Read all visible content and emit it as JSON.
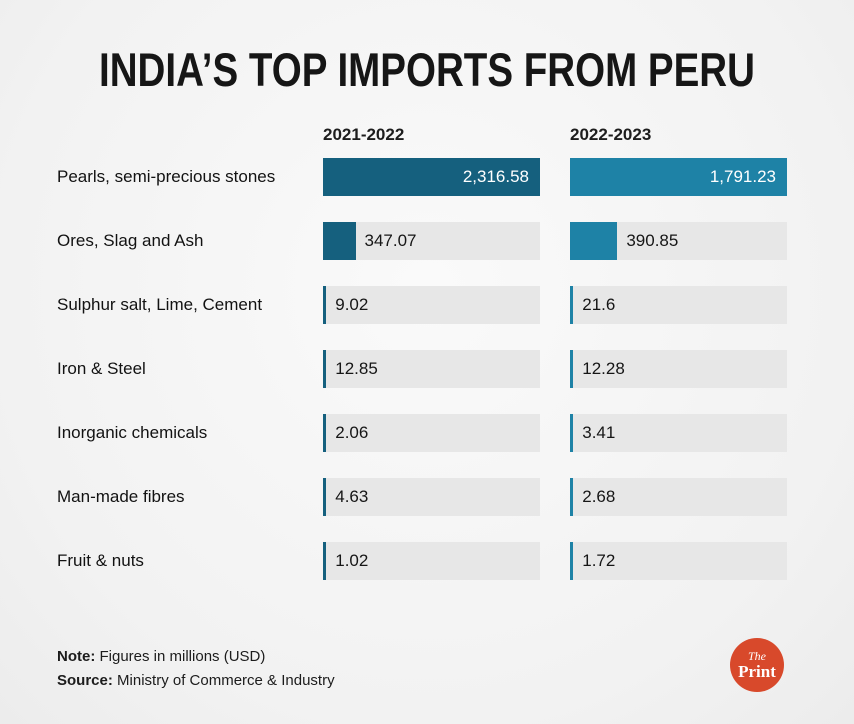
{
  "title": "INDIA’S TOP IMPORTS FROM PERU",
  "chart_data": {
    "type": "bar",
    "orientation": "horizontal",
    "title": "INDIA’S TOP IMPORTS FROM PERU",
    "categories": [
      "Pearls, semi-precious stones",
      "Ores, Slag and Ash",
      "Sulphur salt, Lime, Cement",
      "Iron & Steel",
      "Inorganic chemicals",
      "Man-made fibres",
      "Fruit & nuts"
    ],
    "series": [
      {
        "name": "2021-2022",
        "color": "#15607e",
        "values": [
          2316.58,
          347.07,
          9.02,
          12.85,
          2.06,
          4.63,
          1.02
        ],
        "labels": [
          "2,316.58",
          "347.07",
          "9.02",
          "12.85",
          "2.06",
          "4.63",
          "1.02"
        ]
      },
      {
        "name": "2022-2023",
        "color": "#1e82a6",
        "values": [
          1791.23,
          390.85,
          21.6,
          12.28,
          3.41,
          2.68,
          1.72
        ],
        "labels": [
          "1,791.23",
          "390.85",
          "21.6",
          "12.28",
          "3.41",
          "2.68",
          "1.72"
        ]
      }
    ],
    "legend_position": "top",
    "grid": false,
    "track_color": "#e7e7e7"
  },
  "footer": {
    "note_label": "Note:",
    "note_text": " Figures in millions (USD)",
    "source_label": "Source:",
    "source_text": " Ministry of Commerce & Industry"
  },
  "logo": {
    "text_top": "The",
    "text_bottom": "Print",
    "color": "#d8492b"
  }
}
